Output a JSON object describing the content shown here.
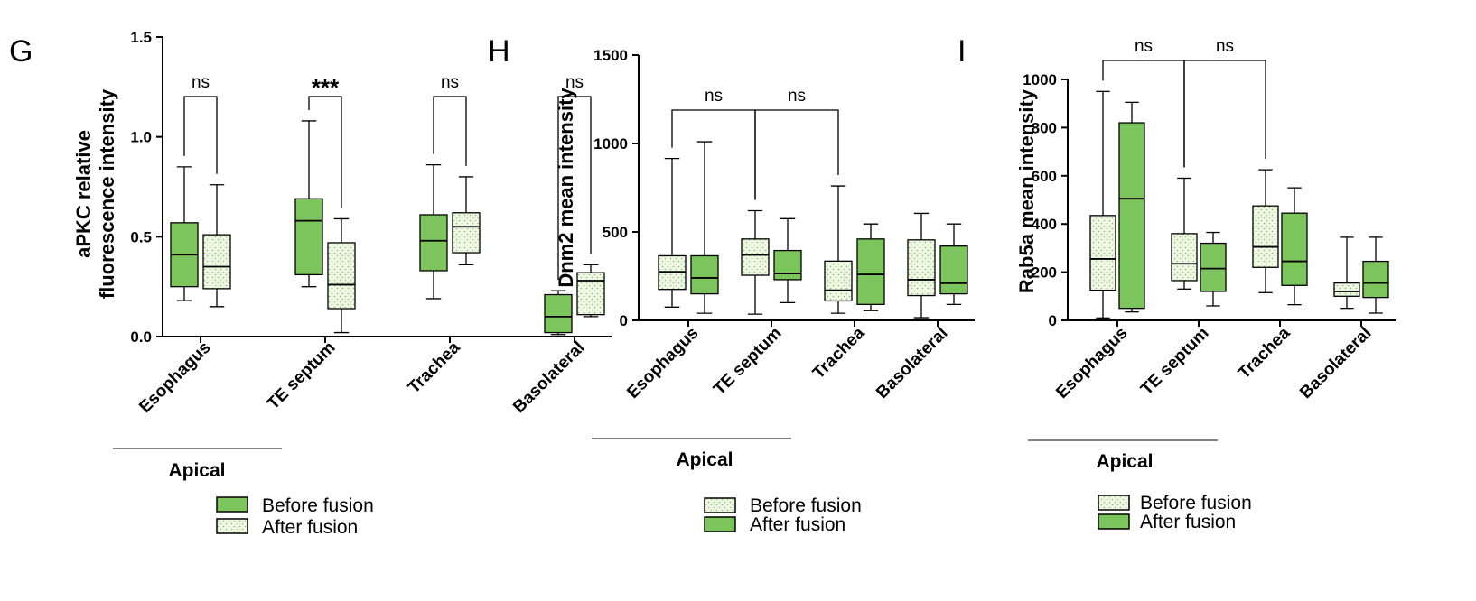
{
  "colors": {
    "green": "#7cc55c",
    "dotted_fill": "#eef7e4",
    "dot": "#8fbf6a",
    "stroke": "#000000"
  },
  "chart_data": [
    {
      "type": "box",
      "panel": "G",
      "ylabel_lines": [
        "aPKC relative",
        "fluorescence intensity"
      ],
      "ylim": [
        0,
        1.5
      ],
      "yticks": [
        "0.0",
        "0.5",
        "1.0",
        "1.5"
      ],
      "categories": [
        "Esophagus",
        "TE septum",
        "Trachea",
        "Basolateral"
      ],
      "group_label": "Apical",
      "legend": [
        {
          "name": "Before fusion",
          "style": "solid"
        },
        {
          "name": "After fusion",
          "style": "dotted"
        }
      ],
      "series": [
        {
          "name": "Before fusion",
          "style": "solid",
          "boxes": [
            {
              "min": 0.18,
              "q1": 0.25,
              "median": 0.41,
              "q3": 0.57,
              "max": 0.85
            },
            {
              "min": 0.25,
              "q1": 0.31,
              "median": 0.58,
              "q3": 0.69,
              "max": 1.08
            },
            {
              "min": 0.19,
              "q1": 0.33,
              "median": 0.48,
              "q3": 0.61,
              "max": 0.86
            },
            {
              "min": 0.01,
              "q1": 0.02,
              "median": 0.1,
              "q3": 0.21,
              "max": 0.23
            }
          ]
        },
        {
          "name": "After fusion",
          "style": "dotted",
          "boxes": [
            {
              "min": 0.15,
              "q1": 0.24,
              "median": 0.35,
              "q3": 0.51,
              "max": 0.76
            },
            {
              "min": 0.02,
              "q1": 0.14,
              "median": 0.26,
              "q3": 0.47,
              "max": 0.59
            },
            {
              "min": 0.36,
              "q1": 0.42,
              "median": 0.55,
              "q3": 0.62,
              "max": 0.8
            },
            {
              "min": 0.1,
              "q1": 0.11,
              "median": 0.28,
              "q3": 0.32,
              "max": 0.36
            }
          ]
        }
      ],
      "comparisons": [
        {
          "label": "ns",
          "from": "Esophagus/Before fusion",
          "to": "Esophagus/After fusion"
        },
        {
          "label": "***",
          "from": "TE septum/Before fusion",
          "to": "TE septum/After fusion"
        },
        {
          "label": "ns",
          "from": "Trachea/Before fusion",
          "to": "Trachea/After fusion"
        },
        {
          "label": "ns",
          "from": "Basolateral/Before fusion",
          "to": "Basolateral/After fusion"
        }
      ]
    },
    {
      "type": "box",
      "panel": "H",
      "ylabel_lines": [
        "Dnm2 mean intensity"
      ],
      "ylim": [
        0,
        1500
      ],
      "yticks": [
        "0",
        "500",
        "1000",
        "1500"
      ],
      "categories": [
        "Esophagus",
        "TE septum",
        "Trachea",
        "Basolateral"
      ],
      "group_label": "Apical",
      "legend": [
        {
          "name": "Before fusion",
          "style": "dotted"
        },
        {
          "name": "After fusion",
          "style": "solid"
        }
      ],
      "series": [
        {
          "name": "Before fusion",
          "style": "dotted",
          "boxes": [
            {
              "min": 75,
              "q1": 175,
              "median": 275,
              "q3": 365,
              "max": 915
            },
            {
              "min": 35,
              "q1": 255,
              "median": 370,
              "q3": 460,
              "max": 620
            },
            {
              "min": 40,
              "q1": 110,
              "median": 170,
              "q3": 335,
              "max": 760
            },
            {
              "min": 15,
              "q1": 140,
              "median": 230,
              "q3": 455,
              "max": 605
            }
          ]
        },
        {
          "name": "After fusion",
          "style": "solid",
          "boxes": [
            {
              "min": 40,
              "q1": 150,
              "median": 240,
              "q3": 365,
              "max": 1010
            },
            {
              "min": 100,
              "q1": 230,
              "median": 265,
              "q3": 395,
              "max": 575
            },
            {
              "min": 55,
              "q1": 90,
              "median": 260,
              "q3": 460,
              "max": 545
            },
            {
              "min": 90,
              "q1": 150,
              "median": 210,
              "q3": 420,
              "max": 545
            }
          ]
        }
      ],
      "comparisons": [
        {
          "label": "ns",
          "from": "Esophagus/Before fusion",
          "to": "TE septum/Before fusion"
        },
        {
          "label": "ns",
          "from": "TE septum/Before fusion",
          "to": "Trachea/Before fusion"
        }
      ]
    },
    {
      "type": "box",
      "panel": "I",
      "ylabel_lines": [
        "Rab5a mean intensity"
      ],
      "ylim": [
        0,
        1000
      ],
      "yticks": [
        "0",
        "200",
        "400",
        "600",
        "800",
        "1000"
      ],
      "categories": [
        "Esophagus",
        "TE septum",
        "Trachea",
        "Basolateral"
      ],
      "group_label": "Apical",
      "legend": [
        {
          "name": "Before fusion",
          "style": "dotted"
        },
        {
          "name": "After fusion",
          "style": "solid"
        }
      ],
      "series": [
        {
          "name": "Before fusion",
          "style": "dotted",
          "boxes": [
            {
              "min": 10,
              "q1": 125,
              "median": 255,
              "q3": 435,
              "max": 950
            },
            {
              "min": 130,
              "q1": 165,
              "median": 235,
              "q3": 360,
              "max": 590
            },
            {
              "min": 115,
              "q1": 220,
              "median": 305,
              "q3": 475,
              "max": 625
            },
            {
              "min": 50,
              "q1": 100,
              "median": 120,
              "q3": 155,
              "max": 345
            }
          ]
        },
        {
          "name": "After fusion",
          "style": "solid",
          "boxes": [
            {
              "min": 35,
              "q1": 50,
              "median": 505,
              "q3": 820,
              "max": 905
            },
            {
              "min": 60,
              "q1": 120,
              "median": 215,
              "q3": 320,
              "max": 365
            },
            {
              "min": 65,
              "q1": 145,
              "median": 245,
              "q3": 445,
              "max": 550
            },
            {
              "min": 30,
              "q1": 95,
              "median": 155,
              "q3": 245,
              "max": 345
            }
          ]
        }
      ],
      "comparisons": [
        {
          "label": "ns",
          "from": "Esophagus/Before fusion",
          "to": "TE septum/Before fusion"
        },
        {
          "label": "ns",
          "from": "TE septum/Before fusion",
          "to": "Trachea/Before fusion"
        }
      ]
    }
  ]
}
